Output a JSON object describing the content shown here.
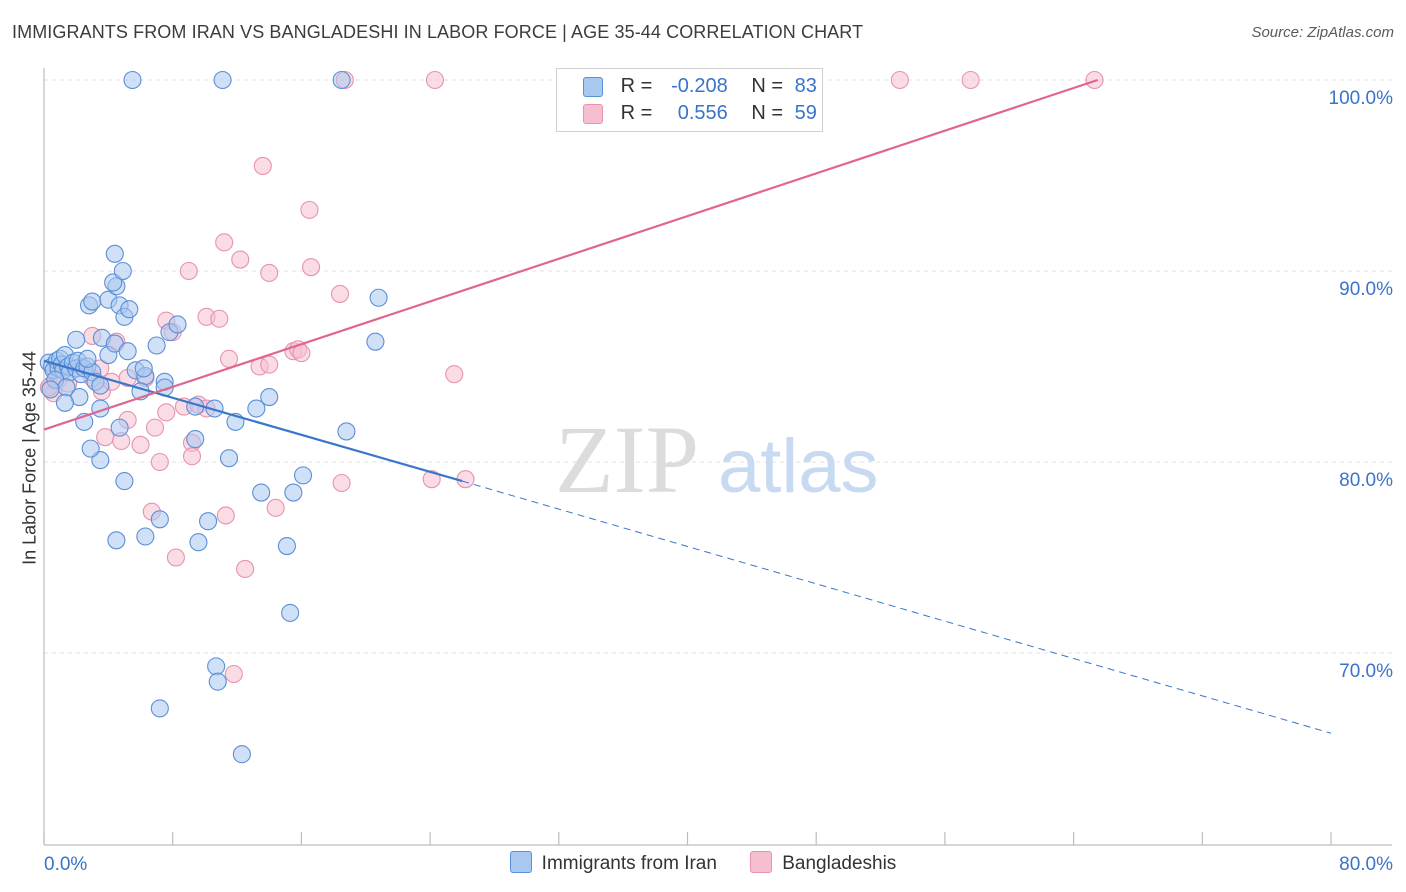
{
  "title": "IMMIGRANTS FROM IRAN VS BANGLADESHI IN LABOR FORCE | AGE 35-44 CORRELATION CHART",
  "source": "Source: ZipAtlas.com",
  "watermark": {
    "zip": "ZIP",
    "atlas": "atlas"
  },
  "colors": {
    "blue_fill": "#a9c8f0",
    "blue_stroke": "#5b8fd6",
    "blue_line": "#3a76cc",
    "pink_fill": "#f5bfd0",
    "pink_stroke": "#e793ae",
    "pink_line": "#e0668e",
    "axis_text": "#3a73c9",
    "grid": "#e2e2e2"
  },
  "legend": {
    "series1": {
      "r_label": "R =",
      "r_value": "-0.208",
      "n_label": "N =",
      "n_value": "83"
    },
    "series2": {
      "r_label": "R =",
      "r_value": "0.556",
      "n_label": "N =",
      "n_value": "59"
    }
  },
  "bottom_legend": {
    "series1": "Immigrants from Iran",
    "series2": "Bangladeshis"
  },
  "chart_data": {
    "type": "scatter",
    "xlabel": "",
    "ylabel": "In Labor Force | Age 35-44",
    "xlim": [
      0,
      80
    ],
    "ylim": [
      61.5,
      101.5
    ],
    "x_tick_labels": [
      {
        "value": 0,
        "label": "0.0%"
      },
      {
        "value": 80,
        "label": "80.0%"
      }
    ],
    "y_tick_labels": [
      {
        "value": 100,
        "label": "100.0%"
      },
      {
        "value": 90,
        "label": "90.0%"
      },
      {
        "value": 80,
        "label": "80.0%"
      },
      {
        "value": 70,
        "label": "70.0%"
      }
    ],
    "series": [
      {
        "name": "Immigrants from Iran",
        "color": "blue",
        "trend": {
          "x": [
            0,
            26
          ],
          "y": [
            85.3,
            79.0
          ],
          "dash_to": {
            "x": 80,
            "y": 65.8
          }
        },
        "points": [
          [
            0.3,
            85.2
          ],
          [
            0.5,
            85.0
          ],
          [
            0.6,
            84.8
          ],
          [
            0.8,
            85.3
          ],
          [
            0.9,
            84.9
          ],
          [
            1.0,
            85.4
          ],
          [
            1.1,
            85.1
          ],
          [
            1.2,
            84.8
          ],
          [
            1.3,
            85.6
          ],
          [
            1.5,
            85.0
          ],
          [
            1.6,
            84.7
          ],
          [
            1.8,
            85.2
          ],
          [
            2.0,
            84.9
          ],
          [
            2.1,
            85.3
          ],
          [
            2.3,
            84.6
          ],
          [
            2.5,
            84.9
          ],
          [
            2.7,
            85.0
          ],
          [
            3.0,
            84.7
          ],
          [
            0.7,
            84.3
          ],
          [
            1.4,
            83.9
          ],
          [
            2.2,
            83.4
          ],
          [
            1.3,
            83.1
          ],
          [
            3.2,
            84.2
          ],
          [
            2.0,
            86.4
          ],
          [
            2.7,
            85.4
          ],
          [
            3.5,
            84.0
          ],
          [
            4.0,
            85.6
          ],
          [
            3.6,
            86.5
          ],
          [
            4.4,
            86.2
          ],
          [
            5.2,
            85.8
          ],
          [
            5.7,
            84.8
          ],
          [
            6.3,
            84.5
          ],
          [
            7.0,
            86.1
          ],
          [
            7.5,
            84.2
          ],
          [
            7.8,
            86.8
          ],
          [
            8.3,
            87.2
          ],
          [
            2.8,
            88.2
          ],
          [
            3.0,
            88.4
          ],
          [
            4.0,
            88.5
          ],
          [
            4.5,
            89.2
          ],
          [
            4.3,
            89.4
          ],
          [
            4.7,
            88.2
          ],
          [
            5.0,
            87.6
          ],
          [
            5.3,
            88.0
          ],
          [
            4.4,
            90.9
          ],
          [
            4.9,
            90.0
          ],
          [
            2.5,
            82.1
          ],
          [
            3.5,
            82.8
          ],
          [
            4.7,
            81.8
          ],
          [
            6.0,
            83.7
          ],
          [
            7.5,
            83.9
          ],
          [
            9.4,
            82.9
          ],
          [
            10.6,
            82.8
          ],
          [
            11.9,
            82.1
          ],
          [
            13.2,
            82.8
          ],
          [
            14.0,
            83.4
          ],
          [
            9.4,
            81.2
          ],
          [
            11.5,
            80.2
          ],
          [
            3.5,
            80.1
          ],
          [
            2.9,
            80.7
          ],
          [
            5.0,
            79.0
          ],
          [
            13.5,
            78.4
          ],
          [
            15.5,
            78.4
          ],
          [
            16.1,
            79.3
          ],
          [
            18.8,
            81.6
          ],
          [
            20.6,
            86.3
          ],
          [
            20.8,
            88.6
          ],
          [
            6.2,
            84.9
          ],
          [
            7.2,
            77.0
          ],
          [
            10.2,
            76.9
          ],
          [
            9.6,
            75.8
          ],
          [
            6.3,
            76.1
          ],
          [
            4.5,
            75.9
          ],
          [
            15.1,
            75.6
          ],
          [
            15.3,
            72.1
          ],
          [
            10.7,
            69.3
          ],
          [
            10.8,
            68.5
          ],
          [
            7.2,
            67.1
          ],
          [
            12.3,
            64.7
          ],
          [
            5.5,
            100
          ],
          [
            11.1,
            100
          ],
          [
            18.5,
            100
          ],
          [
            0.4,
            83.8
          ]
        ]
      },
      {
        "name": "Bangladeshis",
        "color": "pink",
        "trend": {
          "x": [
            0,
            65.5
          ],
          "y": [
            81.7,
            100.0
          ]
        },
        "points": [
          [
            0.4,
            84.0
          ],
          [
            0.6,
            83.6
          ],
          [
            0.9,
            84.3
          ],
          [
            1.5,
            84.1
          ],
          [
            2.3,
            85.0
          ],
          [
            3.0,
            84.4
          ],
          [
            3.6,
            83.7
          ],
          [
            4.2,
            84.2
          ],
          [
            5.2,
            84.4
          ],
          [
            6.3,
            84.4
          ],
          [
            3.0,
            86.6
          ],
          [
            4.5,
            86.3
          ],
          [
            7.6,
            87.4
          ],
          [
            8.0,
            86.8
          ],
          [
            10.1,
            87.6
          ],
          [
            10.9,
            87.5
          ],
          [
            11.5,
            85.4
          ],
          [
            13.4,
            85.0
          ],
          [
            14.0,
            85.1
          ],
          [
            15.5,
            85.8
          ],
          [
            15.8,
            85.9
          ],
          [
            16.0,
            85.7
          ],
          [
            9.0,
            90.0
          ],
          [
            11.2,
            91.5
          ],
          [
            12.2,
            90.6
          ],
          [
            14.0,
            89.9
          ],
          [
            16.6,
            90.2
          ],
          [
            18.4,
            88.8
          ],
          [
            13.6,
            95.5
          ],
          [
            16.5,
            93.2
          ],
          [
            3.8,
            81.3
          ],
          [
            4.8,
            81.1
          ],
          [
            5.2,
            82.2
          ],
          [
            6.0,
            80.9
          ],
          [
            6.9,
            81.8
          ],
          [
            7.6,
            82.6
          ],
          [
            8.7,
            82.9
          ],
          [
            9.6,
            83.0
          ],
          [
            10.1,
            82.8
          ],
          [
            9.2,
            81.0
          ],
          [
            7.2,
            80.0
          ],
          [
            9.2,
            80.3
          ],
          [
            18.5,
            78.9
          ],
          [
            14.4,
            77.6
          ],
          [
            11.3,
            77.2
          ],
          [
            6.7,
            77.4
          ],
          [
            8.2,
            75.0
          ],
          [
            12.5,
            74.4
          ],
          [
            11.8,
            68.9
          ],
          [
            24.1,
            79.1
          ],
          [
            26.2,
            79.1
          ],
          [
            25.5,
            84.6
          ],
          [
            18.7,
            100
          ],
          [
            24.3,
            100
          ],
          [
            53.2,
            100
          ],
          [
            57.6,
            100
          ],
          [
            65.3,
            100
          ],
          [
            0.3,
            83.9
          ],
          [
            3.5,
            84.9
          ]
        ]
      }
    ]
  }
}
